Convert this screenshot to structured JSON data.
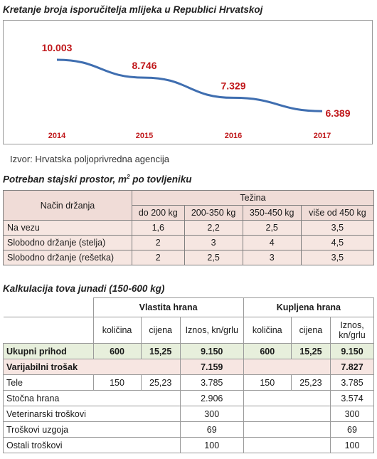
{
  "chart_section": {
    "title": "Kretanje broja isporučitelja mlijeka u Republici Hrvatskoj",
    "source": "Izvor: Hrvatska poljoprivredna agencija"
  },
  "chart_data": {
    "type": "line",
    "title": "Kretanje broja isporučitelja mlijeka u Republici Hrvatskoj",
    "categories": [
      "2014",
      "2015",
      "2016",
      "2017"
    ],
    "values": [
      10003,
      8746,
      7329,
      6389
    ],
    "value_labels": [
      "10.003",
      "8.746",
      "7.329",
      "6.389"
    ],
    "xlabel": "",
    "ylabel": "",
    "ylim": [
      5000,
      11000
    ],
    "grid": false,
    "colors": {
      "line": "#3f6eb0",
      "labels": "#c0181b"
    }
  },
  "space_section": {
    "title_main": "Potreban stajski prostor, m",
    "title_sup": "2",
    "title_tail": " po tovljeniku",
    "header_row_label": "Način držanja",
    "header_group": "Težina",
    "columns": [
      "do 200 kg",
      "200-350 kg",
      "350-450 kg",
      "više od 450 kg"
    ],
    "rows": [
      {
        "label": "Na vezu",
        "values": [
          "1,6",
          "2,2",
          "2,5",
          "3,5"
        ]
      },
      {
        "label": "Slobodno držanje (stelja)",
        "values": [
          "2",
          "3",
          "4",
          "4,5"
        ]
      },
      {
        "label": "Slobodno držanje (rešetka)",
        "values": [
          "2",
          "2,5",
          "3",
          "3,5"
        ]
      }
    ],
    "colors": {
      "header_bg": "#f0dcd7",
      "cell_bg": "#f6e6e1"
    }
  },
  "calc_section": {
    "title": "Kalkulacija tova junadi (150-600 kg)",
    "group_own": "Vlastita hrana",
    "group_bought": "Kupljena hrana",
    "sub_headers": [
      "količina",
      "cijena",
      "Iznos, kn/grlu",
      "količina",
      "cijena",
      "Iznos, kn/grlu"
    ],
    "rows": [
      {
        "label": "Ukupni prihod",
        "cells": [
          "600",
          "15,25",
          "9.150",
          "600",
          "15,25",
          "9.150"
        ]
      },
      {
        "label": "Varijabilni trošak",
        "cells": [
          "",
          "",
          "7.159",
          "",
          "",
          "7.827"
        ]
      },
      {
        "label": "Tele",
        "cells": [
          "150",
          "25,23",
          "3.785",
          "150",
          "25,23",
          "3.785"
        ]
      },
      {
        "label": "Stočna hrana",
        "cells": [
          "",
          "",
          "2.906",
          "",
          "",
          "3.574"
        ]
      },
      {
        "label": "Veterinarski troškovi",
        "cells": [
          "",
          "",
          "300",
          "",
          "",
          "300"
        ]
      },
      {
        "label": "Troškovi uzgoja",
        "cells": [
          "",
          "",
          "69",
          "",
          "",
          "69"
        ]
      },
      {
        "label": "Ostali troškovi",
        "cells": [
          "",
          "",
          "100",
          "",
          "",
          "100"
        ]
      }
    ],
    "colors": {
      "income_bg": "#e7efdc",
      "variable_bg": "#f7e6e2"
    }
  }
}
